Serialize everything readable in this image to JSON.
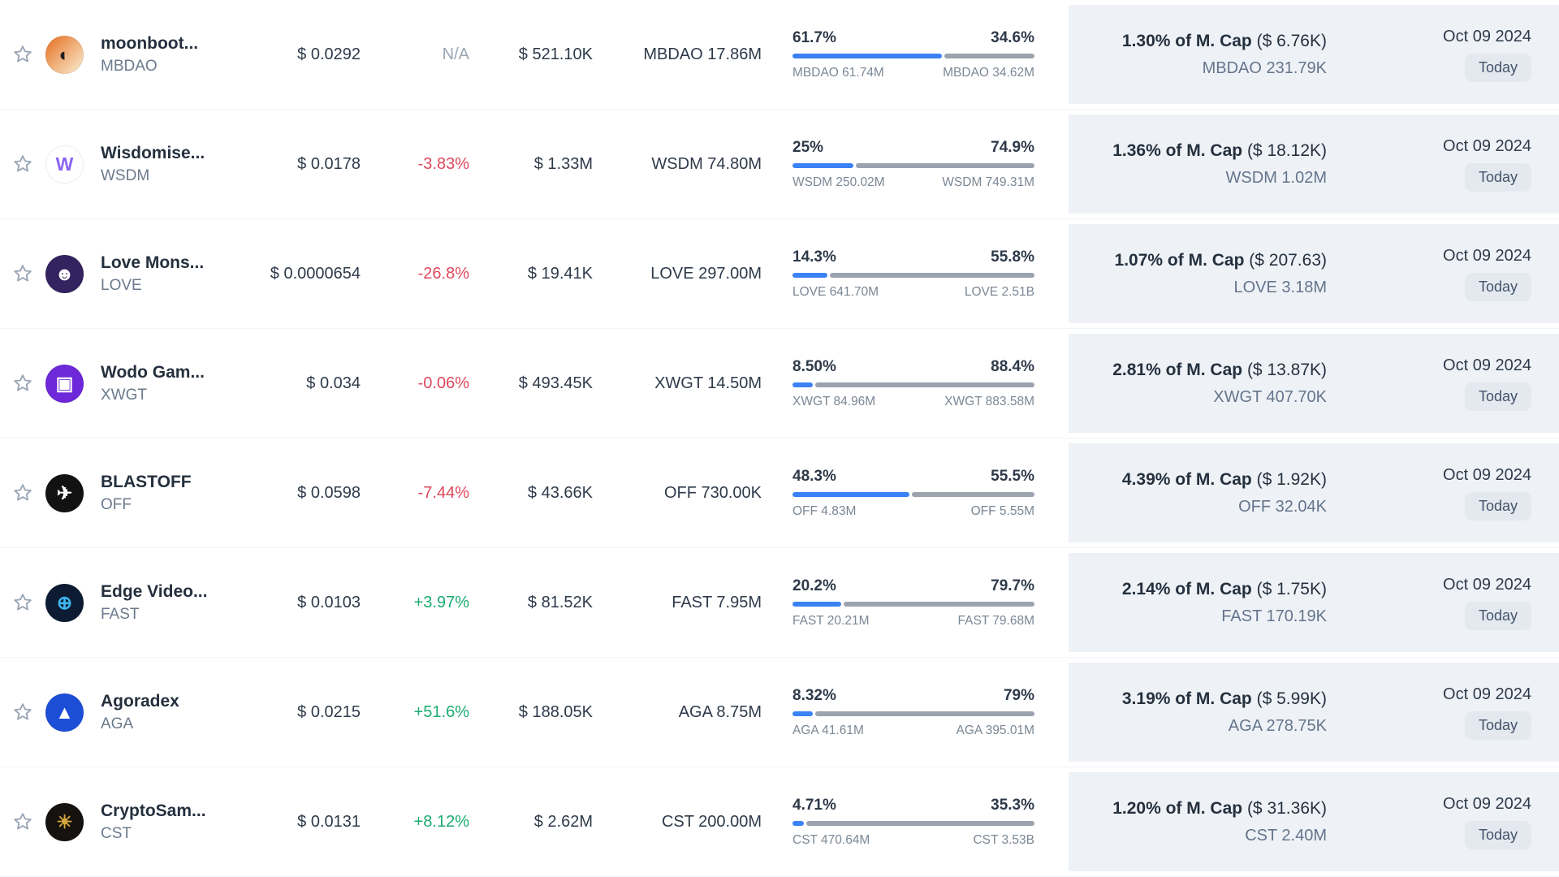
{
  "colors": {
    "accent_blue": "#3b82f6",
    "positive_green": "#1cab72",
    "negative_red": "#e0485c",
    "panel_bg": "#eef2f7",
    "bar_gray": "#9aa3ae"
  },
  "icons": {
    "favorite": "star-outline-icon"
  },
  "table": {
    "rows": [
      {
        "name": "moonboot...",
        "symbol": "MBDAO",
        "price": "$ 0.0292",
        "change": "N/A",
        "change_dir": "na",
        "volume": "$ 521.10K",
        "supply": "MBDAO 17.86M",
        "unlocked_pct": "61.7%",
        "locked_pct": "34.6%",
        "unlocked_val": 61.7,
        "unlocked_amount": "MBDAO 61.74M",
        "locked_amount": "MBDAO 34.62M",
        "mcap_pct": "1.30% of M. Cap",
        "mcap_usd": "($ 6.76K)",
        "unlock_amount": "MBDAO 231.79K",
        "date": "Oct 09 2024",
        "when": "Today",
        "logo_bg": "linear-gradient(135deg,#e8813a 15%,#f8ddba 85%)",
        "logo_fg": "#1f1f1f",
        "logo_glyph": "◐"
      },
      {
        "name": "Wisdomise...",
        "symbol": "WSDM",
        "price": "$ 0.0178",
        "change": "-3.83%",
        "change_dir": "down",
        "volume": "$ 1.33M",
        "supply": "WSDM 74.80M",
        "unlocked_pct": "25%",
        "locked_pct": "74.9%",
        "unlocked_val": 25,
        "unlocked_amount": "WSDM 250.02M",
        "locked_amount": "WSDM 749.31M",
        "mcap_pct": "1.36% of M. Cap",
        "mcap_usd": "($ 18.12K)",
        "unlock_amount": "WSDM 1.02M",
        "date": "Oct 09 2024",
        "when": "Today",
        "logo_bg": "#ffffff",
        "logo_fg": "#8a63f2",
        "logo_glyph": "W"
      },
      {
        "name": "Love Mons...",
        "symbol": "LOVE",
        "price": "$ 0.0000654",
        "change": "-26.8%",
        "change_dir": "down",
        "volume": "$ 19.41K",
        "supply": "LOVE 297.00M",
        "unlocked_pct": "14.3%",
        "locked_pct": "55.8%",
        "unlocked_val": 14.3,
        "unlocked_amount": "LOVE 641.70M",
        "locked_amount": "LOVE 2.51B",
        "mcap_pct": "1.07% of M. Cap",
        "mcap_usd": "($ 207.63)",
        "unlock_amount": "LOVE 3.18M",
        "date": "Oct 09 2024",
        "when": "Today",
        "logo_bg": "#33235f",
        "logo_fg": "#ffffff",
        "logo_glyph": "☻"
      },
      {
        "name": "Wodo Gam...",
        "symbol": "XWGT",
        "price": "$ 0.034",
        "change": "-0.06%",
        "change_dir": "down",
        "volume": "$ 493.45K",
        "supply": "XWGT 14.50M",
        "unlocked_pct": "8.50%",
        "locked_pct": "88.4%",
        "unlocked_val": 8.5,
        "unlocked_amount": "XWGT 84.96M",
        "locked_amount": "XWGT 883.58M",
        "mcap_pct": "2.81% of M. Cap",
        "mcap_usd": "($ 13.87K)",
        "unlock_amount": "XWGT 407.70K",
        "date": "Oct 09 2024",
        "when": "Today",
        "logo_bg": "#6d28d9",
        "logo_fg": "#ffffff",
        "logo_glyph": "▣"
      },
      {
        "name": "BLASTOFF",
        "symbol": "OFF",
        "price": "$ 0.0598",
        "change": "-7.44%",
        "change_dir": "down",
        "volume": "$ 43.66K",
        "supply": "OFF 730.00K",
        "unlocked_pct": "48.3%",
        "locked_pct": "55.5%",
        "unlocked_val": 48.3,
        "unlocked_amount": "OFF 4.83M",
        "locked_amount": "OFF 5.55M",
        "mcap_pct": "4.39% of M. Cap",
        "mcap_usd": "($ 1.92K)",
        "unlock_amount": "OFF 32.04K",
        "date": "Oct 09 2024",
        "when": "Today",
        "logo_bg": "#121212",
        "logo_fg": "#ffffff",
        "logo_glyph": "✈"
      },
      {
        "name": "Edge Video...",
        "symbol": "FAST",
        "price": "$ 0.0103",
        "change": "+3.97%",
        "change_dir": "up",
        "volume": "$ 81.52K",
        "supply": "FAST 7.95M",
        "unlocked_pct": "20.2%",
        "locked_pct": "79.7%",
        "unlocked_val": 20.2,
        "unlocked_amount": "FAST 20.21M",
        "locked_amount": "FAST 79.68M",
        "mcap_pct": "2.14% of M. Cap",
        "mcap_usd": "($ 1.75K)",
        "unlock_amount": "FAST 170.19K",
        "date": "Oct 09 2024",
        "when": "Today",
        "logo_bg": "#0d1b33",
        "logo_fg": "#3fb6f0",
        "logo_glyph": "⊕"
      },
      {
        "name": "Agoradex",
        "symbol": "AGA",
        "price": "$ 0.0215",
        "change": "+51.6%",
        "change_dir": "up",
        "volume": "$ 188.05K",
        "supply": "AGA 8.75M",
        "unlocked_pct": "8.32%",
        "locked_pct": "79%",
        "unlocked_val": 8.32,
        "unlocked_amount": "AGA 41.61M",
        "locked_amount": "AGA 395.01M",
        "mcap_pct": "3.19% of M. Cap",
        "mcap_usd": "($ 5.99K)",
        "unlock_amount": "AGA 278.75K",
        "date": "Oct 09 2024",
        "when": "Today",
        "logo_bg": "#1d4ed8",
        "logo_fg": "#ffffff",
        "logo_glyph": "▲"
      },
      {
        "name": "CryptoSam...",
        "symbol": "CST",
        "price": "$ 0.0131",
        "change": "+8.12%",
        "change_dir": "up",
        "volume": "$ 2.62M",
        "supply": "CST 200.00M",
        "unlocked_pct": "4.71%",
        "locked_pct": "35.3%",
        "unlocked_val": 4.71,
        "unlocked_amount": "CST 470.64M",
        "locked_amount": "CST 3.53B",
        "mcap_pct": "1.20% of M. Cap",
        "mcap_usd": "($ 31.36K)",
        "unlock_amount": "CST 2.40M",
        "date": "Oct 09 2024",
        "when": "Today",
        "logo_bg": "#151210",
        "logo_fg": "#d4a53c",
        "logo_glyph": "☀"
      }
    ]
  }
}
